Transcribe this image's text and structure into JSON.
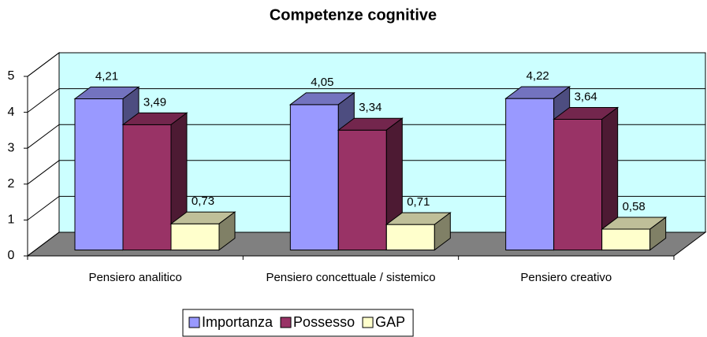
{
  "chart_data": {
    "type": "bar3d",
    "title": "Competenze cognitive",
    "categories": [
      "Pensiero analitico",
      "Pensiero concettuale / sistemico",
      "Pensiero creativo"
    ],
    "series": [
      {
        "name": "Importanza",
        "color": "#9999ff",
        "values": [
          4.21,
          4.05,
          4.22
        ],
        "value_labels": [
          "4,21",
          "4,05",
          "4,22"
        ]
      },
      {
        "name": "Possesso",
        "color": "#993366",
        "values": [
          3.49,
          3.34,
          3.64
        ],
        "value_labels": [
          "3,49",
          "3,34",
          "3,64"
        ]
      },
      {
        "name": "GAP",
        "color": "#ffffcc",
        "values": [
          0.73,
          0.71,
          0.58
        ],
        "value_labels": [
          "0,73",
          "0,71",
          "0,58"
        ]
      }
    ],
    "ylim": [
      0,
      5
    ],
    "yticks": [
      0,
      1,
      2,
      3,
      4,
      5
    ],
    "grid": true,
    "legend": "bottom"
  }
}
